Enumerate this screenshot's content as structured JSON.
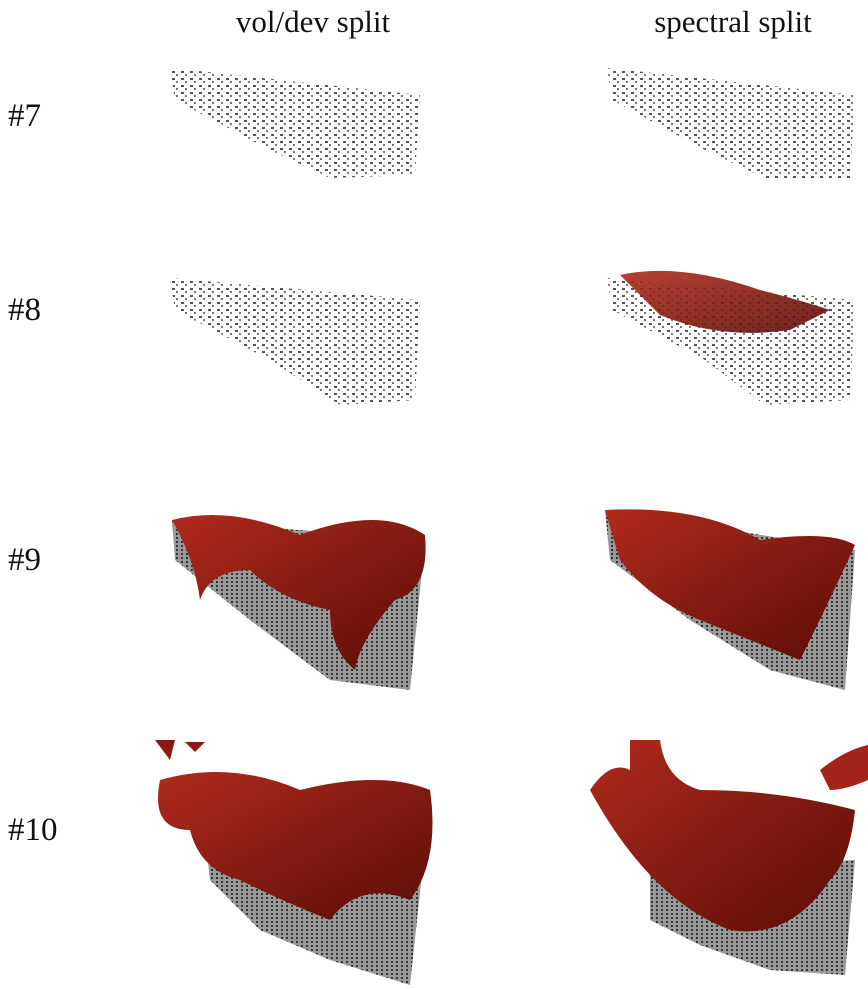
{
  "columns": [
    "vol/dev split",
    "spectral split"
  ],
  "rows": [
    "#7",
    "#8",
    "#9",
    "#10"
  ]
}
